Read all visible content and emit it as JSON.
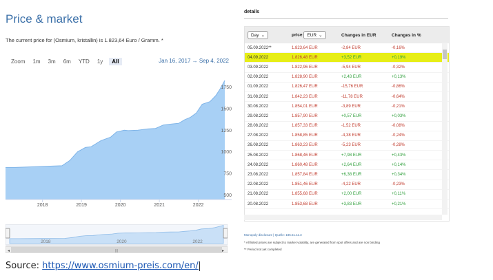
{
  "chart_widget": {
    "title": "Price & market",
    "current_price_text": "The current price for (Osmium, kristallin) is 1.823,64 Euro / Gramm. *",
    "zoom_label": "Zoom",
    "zoom_options": [
      "1m",
      "3m",
      "6m",
      "YTD",
      "1y",
      "All"
    ],
    "zoom_active": "All",
    "date_range": "Jan 16, 2017 → Sep 4, 2022",
    "y_ticks": [
      "1750",
      "1500",
      "1250",
      "1000",
      "750",
      "500"
    ],
    "x_ticks": [
      "2018",
      "2019",
      "2020",
      "2021",
      "2022"
    ],
    "navigator_ticks": [
      "2018",
      "2020",
      "2022"
    ],
    "colors": {
      "area_fill": "#a8d0f5",
      "area_line": "#7fb4e8",
      "title": "#3a6fa8",
      "highlight": "#e7ee16",
      "positive": "#2e9e3a",
      "negative": "#c0392b"
    }
  },
  "chart_data": {
    "type": "area",
    "x": [
      2017.05,
      2017.3,
      2017.6,
      2017.9,
      2018.2,
      2018.5,
      2018.7,
      2018.9,
      2019.1,
      2019.25,
      2019.5,
      2019.75,
      2019.9,
      2020.1,
      2020.2,
      2020.45,
      2020.7,
      2020.9,
      2021.1,
      2021.3,
      2021.5,
      2021.65,
      2021.8,
      2021.95,
      2022.1,
      2022.3,
      2022.45,
      2022.55,
      2022.68
    ],
    "y": [
      820,
      820,
      825,
      830,
      835,
      840,
      900,
      1000,
      1050,
      1060,
      1130,
      1170,
      1230,
      1250,
      1245,
      1250,
      1265,
      1270,
      1310,
      1320,
      1330,
      1370,
      1400,
      1450,
      1550,
      1580,
      1650,
      1720,
      1823.64
    ],
    "ylim": [
      450,
      1800
    ],
    "xlim": [
      2017.05,
      2022.68
    ],
    "y_ticks": [
      500,
      750,
      1000,
      1250,
      1500,
      1750
    ],
    "x_ticks": [
      2018,
      2019,
      2020,
      2021,
      2022
    ],
    "ylabel": "",
    "xlabel": "",
    "grid": false
  },
  "details": {
    "label": "details",
    "headers": {
      "period_select": "Day",
      "price": "price",
      "currency_select": "EUR",
      "change_eur": "Changes in EUR",
      "change_pct": "Changes in %"
    },
    "rows": [
      {
        "date": "05.09.2022**",
        "price": "1.823,64 EUR",
        "change_eur": "-2,84 EUR",
        "change_pct": "-0,16%",
        "dir": "neg"
      },
      {
        "date": "04.09.2022",
        "price": "1.826,48 EUR",
        "change_eur": "+3,52 EUR",
        "change_pct": "+0,19%",
        "dir": "pos",
        "highlight": true
      },
      {
        "date": "03.09.2022",
        "price": "1.822,96 EUR",
        "change_eur": "-5,94 EUR",
        "change_pct": "-0,32%",
        "dir": "neg"
      },
      {
        "date": "02.09.2022",
        "price": "1.828,90 EUR",
        "change_eur": "+2,43 EUR",
        "change_pct": "+0,13%",
        "dir": "pos"
      },
      {
        "date": "01.09.2022",
        "price": "1.826,47 EUR",
        "change_eur": "-15,76 EUR",
        "change_pct": "-0,86%",
        "dir": "neg"
      },
      {
        "date": "31.08.2022",
        "price": "1.842,23 EUR",
        "change_eur": "-11,78 EUR",
        "change_pct": "-0,64%",
        "dir": "neg"
      },
      {
        "date": "30.08.2022",
        "price": "1.854,01 EUR",
        "change_eur": "-3,89 EUR",
        "change_pct": "-0,21%",
        "dir": "neg"
      },
      {
        "date": "29.08.2022",
        "price": "1.857,90 EUR",
        "change_eur": "+0,57 EUR",
        "change_pct": "+0,03%",
        "dir": "pos"
      },
      {
        "date": "28.08.2022",
        "price": "1.857,33 EUR",
        "change_eur": "-1,52 EUR",
        "change_pct": "-0,08%",
        "dir": "neg"
      },
      {
        "date": "27.08.2022",
        "price": "1.858,85 EUR",
        "change_eur": "-4,38 EUR",
        "change_pct": "-0,24%",
        "dir": "neg"
      },
      {
        "date": "26.08.2022",
        "price": "1.863,23 EUR",
        "change_eur": "-5,23 EUR",
        "change_pct": "-0,28%",
        "dir": "neg"
      },
      {
        "date": "25.08.2022",
        "price": "1.868,46 EUR",
        "change_eur": "+7,98 EUR",
        "change_pct": "+0,43%",
        "dir": "pos"
      },
      {
        "date": "24.08.2022",
        "price": "1.860,48 EUR",
        "change_eur": "+2,64 EUR",
        "change_pct": "+0,14%",
        "dir": "pos"
      },
      {
        "date": "23.08.2022",
        "price": "1.857,84 EUR",
        "change_eur": "+6,38 EUR",
        "change_pct": "+0,34%",
        "dir": "pos"
      },
      {
        "date": "22.08.2022",
        "price": "1.851,46 EUR",
        "change_eur": "-4,22 EUR",
        "change_pct": "-0,23%",
        "dir": "neg"
      },
      {
        "date": "21.08.2022",
        "price": "1.855,68 EUR",
        "change_eur": "+2,00 EUR",
        "change_pct": "+0,11%",
        "dir": "pos"
      },
      {
        "date": "20.08.2022",
        "price": "1.853,68 EUR",
        "change_eur": "+3,83 EUR",
        "change_pct": "+0,21%",
        "dir": "pos"
      }
    ],
    "source_note": "Monopoly disclosure | Quelle: 185.51.11.3",
    "footnote_1": "* All listed prices are subject to market volatility, are generated from spot offers and are non binding",
    "footnote_2": "** Period not yet completed"
  },
  "caption": {
    "prefix": "Source: ",
    "link": "https://www.osmium-preis.com/en/"
  }
}
